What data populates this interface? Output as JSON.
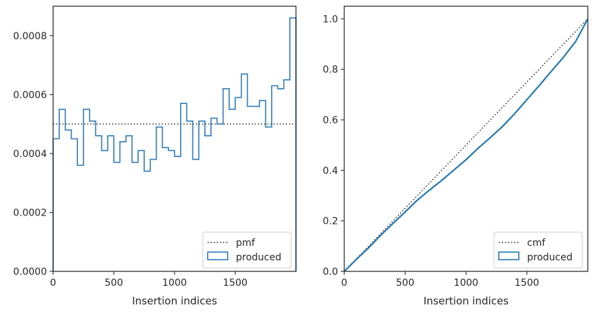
{
  "chart_data": [
    {
      "type": "histogram-step",
      "xlabel": "Insertion indices",
      "ylabel": "",
      "xlim": [
        0,
        2000
      ],
      "ylim": [
        0,
        0.0009
      ],
      "xticks": [
        0,
        500,
        1000,
        1500
      ],
      "xtick_labels": [
        "0",
        "500",
        "1000",
        "1500"
      ],
      "yticks": [
        0,
        0.0002,
        0.0004,
        0.0006,
        0.0008
      ],
      "ytick_labels": [
        "0.0000",
        "0.0002",
        "0.0004",
        "0.0006",
        "0.0008"
      ],
      "bin_width": 50,
      "reference_line": {
        "name": "pmf",
        "y": 0.0005,
        "style": "dotted",
        "color": "#111111"
      },
      "series": [
        {
          "name": "produced",
          "color": "#2b7bba",
          "values": [
            0.00045,
            0.00055,
            0.00048,
            0.00045,
            0.00036,
            0.00055,
            0.00051,
            0.00046,
            0.00041,
            0.00046,
            0.00037,
            0.00044,
            0.00046,
            0.00037,
            0.00041,
            0.00034,
            0.00038,
            0.00049,
            0.00042,
            0.00041,
            0.00039,
            0.00057,
            0.00051,
            0.00038,
            0.00051,
            0.00046,
            0.00052,
            0.0005,
            0.00062,
            0.00055,
            0.00059,
            0.00067,
            0.00056,
            0.00056,
            0.00058,
            0.00049,
            0.00063,
            0.00062,
            0.00065,
            0.00086
          ]
        }
      ],
      "legend": {
        "placement": "lower-right",
        "entries": [
          "pmf",
          "produced"
        ]
      }
    },
    {
      "type": "line",
      "xlabel": "Insertion indices",
      "ylabel": "",
      "xlim": [
        0,
        2000
      ],
      "ylim": [
        0,
        1.05
      ],
      "xticks": [
        0,
        500,
        1000,
        1500
      ],
      "xtick_labels": [
        "0",
        "500",
        "1000",
        "1500"
      ],
      "yticks": [
        0,
        0.2,
        0.4,
        0.6,
        0.8,
        1.0
      ],
      "ytick_labels": [
        "0.0",
        "0.2",
        "0.4",
        "0.6",
        "0.8",
        "1.0"
      ],
      "reference_line": {
        "name": "cmf",
        "from": [
          0,
          0
        ],
        "to": [
          2000,
          1.0
        ],
        "style": "dotted",
        "color": "#111111"
      },
      "series": [
        {
          "name": "produced",
          "color": "#1f77b4",
          "x": [
            0,
            100,
            200,
            300,
            400,
            500,
            600,
            700,
            800,
            900,
            1000,
            1100,
            1200,
            1300,
            1400,
            1500,
            1600,
            1700,
            1800,
            1900,
            2000
          ],
          "y": [
            0,
            0.048,
            0.093,
            0.143,
            0.19,
            0.235,
            0.282,
            0.322,
            0.36,
            0.401,
            0.442,
            0.488,
            0.53,
            0.574,
            0.625,
            0.68,
            0.735,
            0.792,
            0.848,
            0.91,
            1.0
          ]
        }
      ],
      "legend": {
        "placement": "lower-right",
        "entries": [
          "cmf",
          "produced"
        ]
      }
    }
  ]
}
